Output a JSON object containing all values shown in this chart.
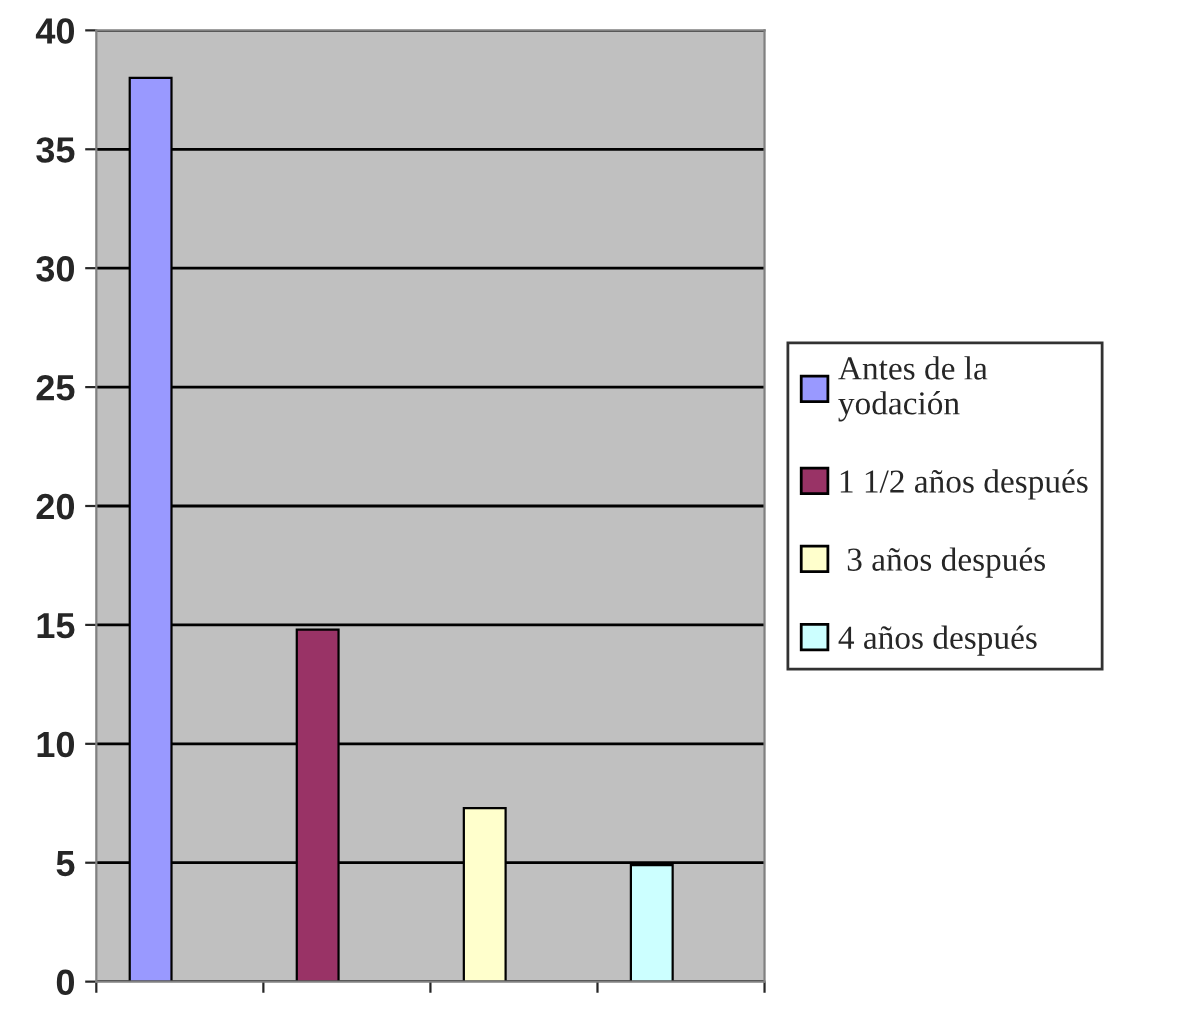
{
  "chart_data": {
    "type": "bar",
    "categories": [
      null
    ],
    "series": [
      {
        "name": "Antes de la\nyodación",
        "color": "#9999ff",
        "values": [
          38
        ]
      },
      {
        "name": "1 1/2 años después",
        "color": "#993366",
        "values": [
          14.8
        ]
      },
      {
        "name": " 3 años después",
        "color": "#ffffcc",
        "values": [
          7.3
        ]
      },
      {
        "name": "4 años después",
        "color": "#ccffff",
        "values": [
          4.9
        ]
      }
    ],
    "ylim": [
      0,
      40
    ],
    "yticks": [
      0,
      5,
      10,
      15,
      20,
      25,
      30,
      35,
      40
    ],
    "grid": "y",
    "legend": "right"
  }
}
